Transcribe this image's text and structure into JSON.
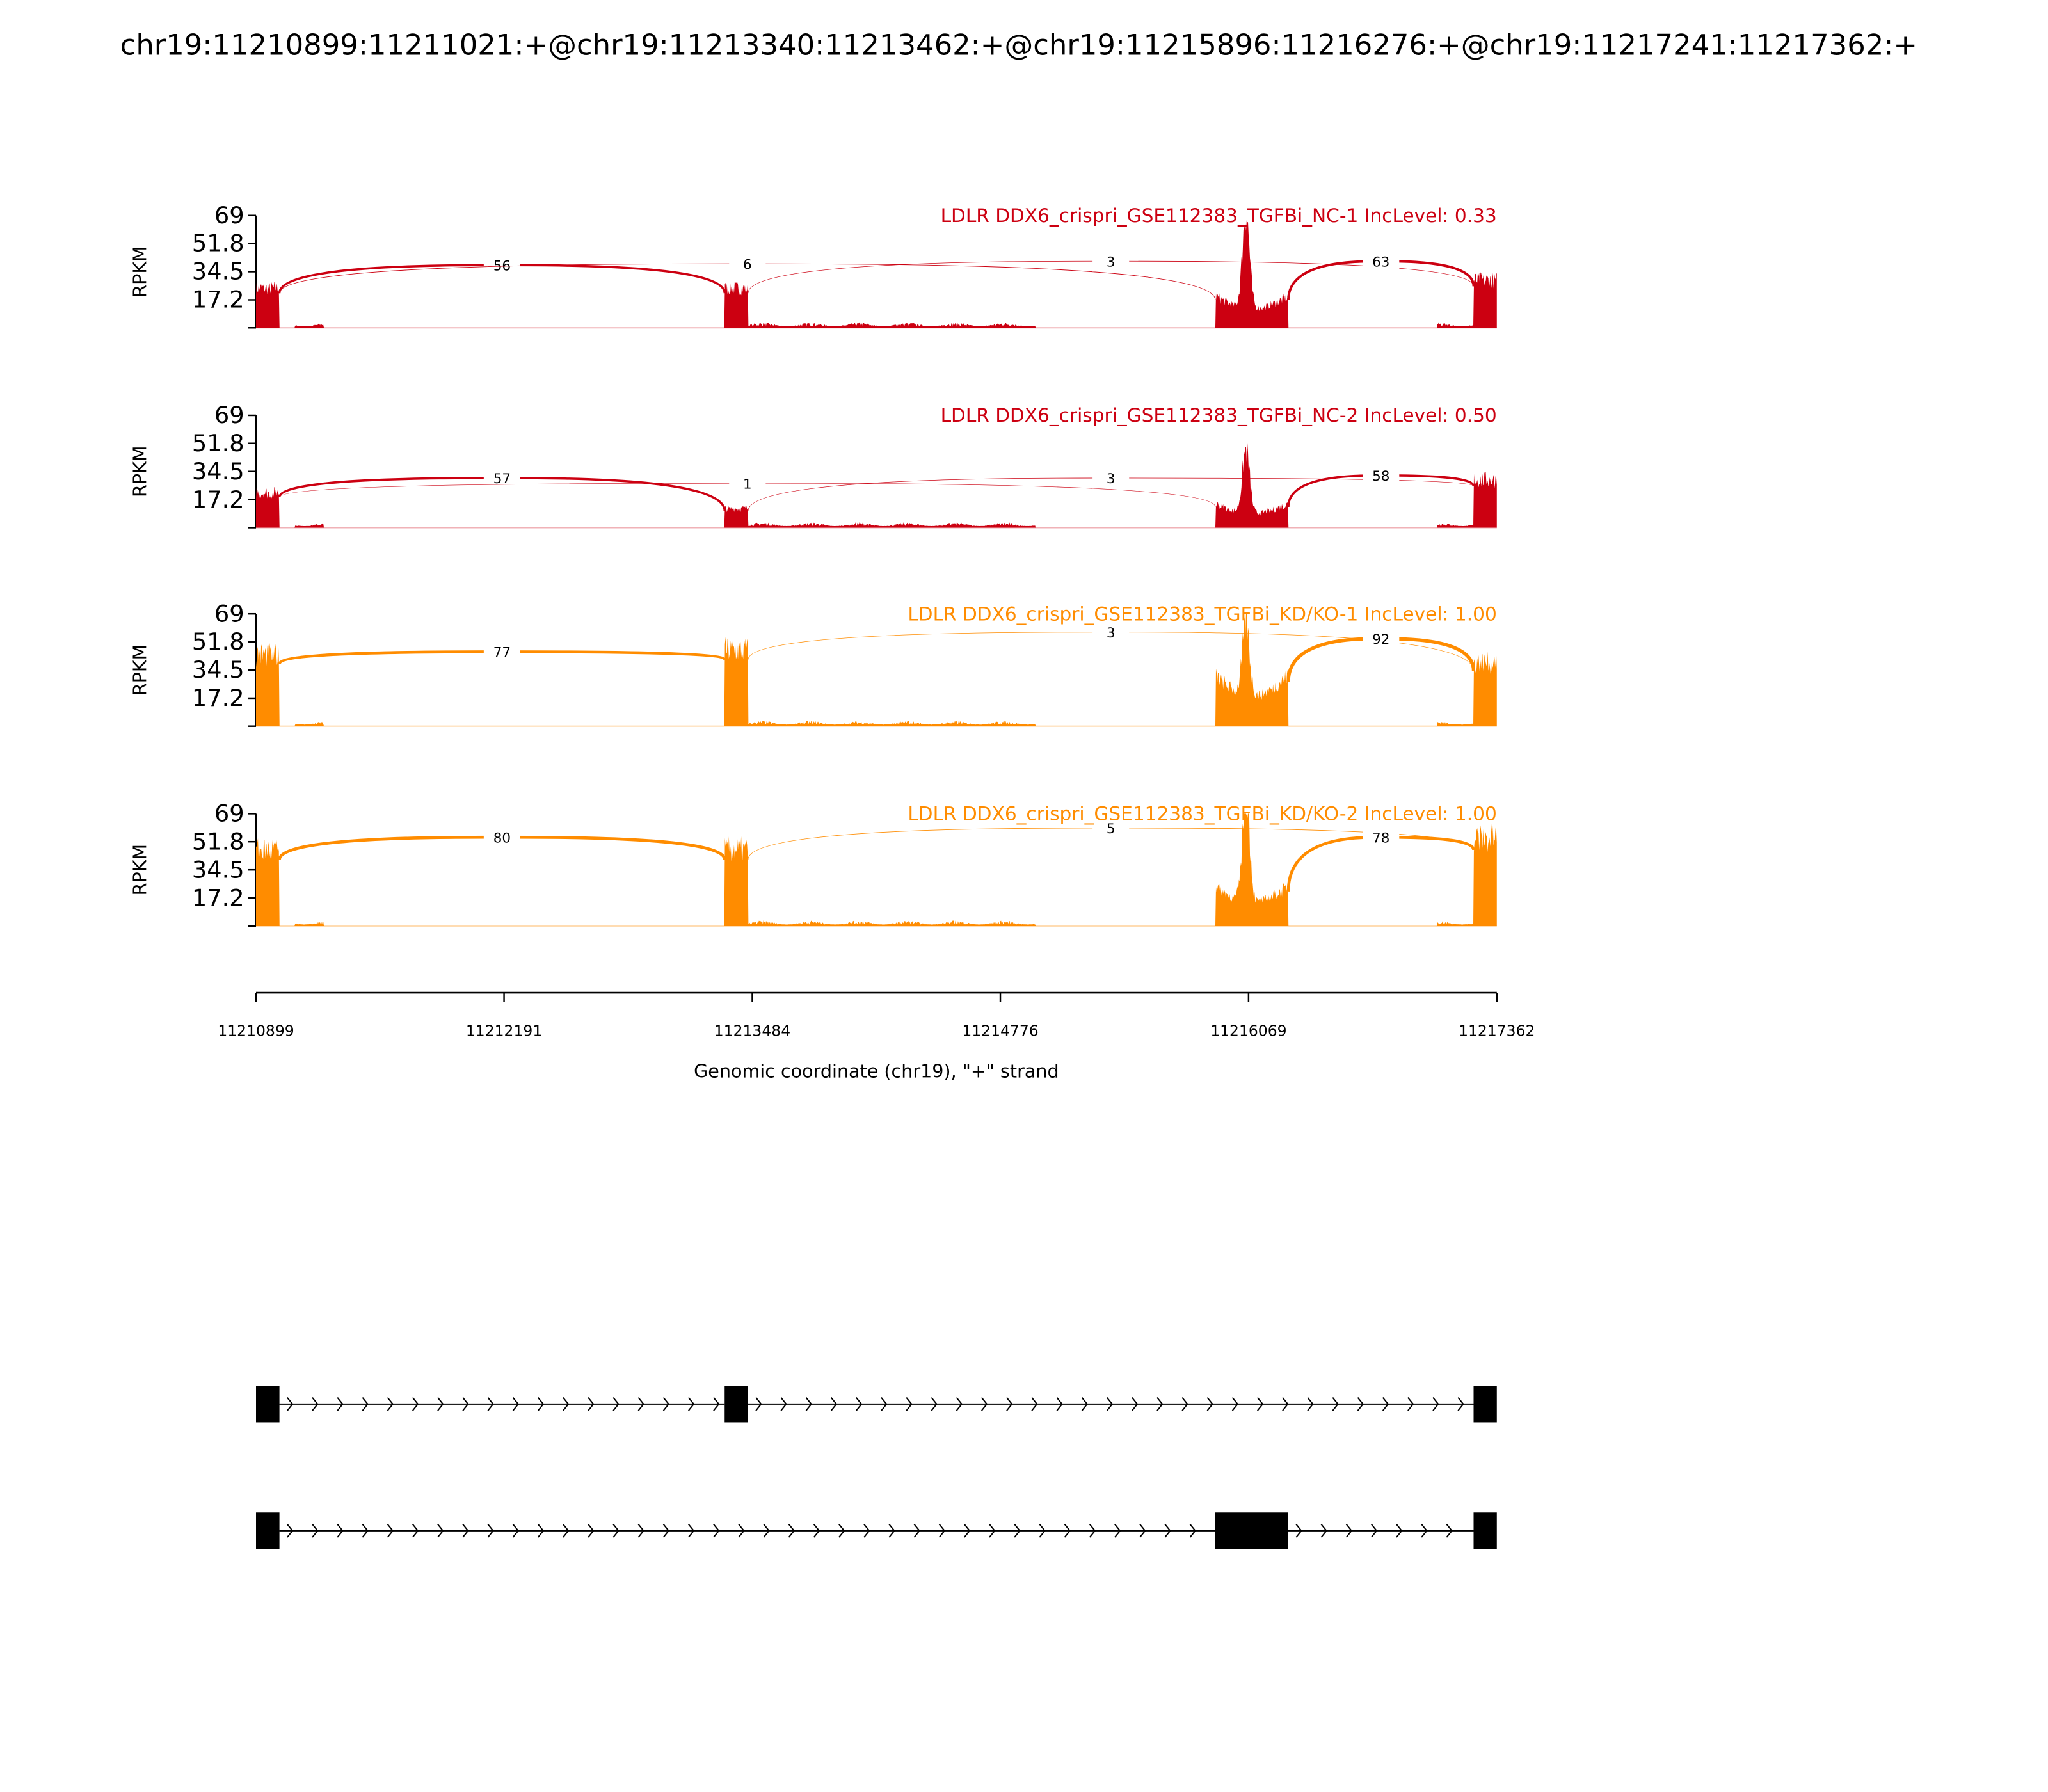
{
  "chart_data": {
    "type": "area",
    "title": "chr19:11210899:11211021:+@chr19:11213340:11213462:+@chr19:11215896:11216276:+@chr19:11217241:11217362:+",
    "xlabel": "Genomic coordinate (chr19), \"+\" strand",
    "ylabel": "RPKM",
    "xlim": [
      11210899,
      11217362
    ],
    "ylim": [
      0,
      69
    ],
    "yticks": [
      "69",
      "51.8",
      "34.5",
      "17.2"
    ],
    "ytick_values": [
      69,
      51.8,
      34.5,
      17.2
    ],
    "xticks": [
      "11210899",
      "11212191",
      "11213484",
      "11214776",
      "11216069",
      "11217362"
    ],
    "exons": [
      [
        11210899,
        11211021
      ],
      [
        11213340,
        11213462
      ],
      [
        11215896,
        11216276
      ],
      [
        11217241,
        11217362
      ]
    ],
    "panels": [
      {
        "label": "LDLR DDX6_crispri_GSE112383_TGFBi_NC-1 IncLevel: 0.33",
        "color": "#cc0011",
        "junctions": [
          {
            "start": 11211021,
            "end": 11213340,
            "count": "56"
          },
          {
            "start": 11211021,
            "end": 11215896,
            "count": "6"
          },
          {
            "start": 11213462,
            "end": 11217241,
            "count": "3"
          },
          {
            "start": 11216276,
            "end": 11217241,
            "count": "63"
          }
        ]
      },
      {
        "label": "LDLR DDX6_crispri_GSE112383_TGFBi_NC-2 IncLevel: 0.50",
        "color": "#cc0011",
        "junctions": [
          {
            "start": 11211021,
            "end": 11213340,
            "count": "57"
          },
          {
            "start": 11211021,
            "end": 11215896,
            "count": "1"
          },
          {
            "start": 11213462,
            "end": 11217241,
            "count": "3"
          },
          {
            "start": 11216276,
            "end": 11217241,
            "count": "58"
          }
        ]
      },
      {
        "label": "LDLR DDX6_crispri_GSE112383_TGFBi_KD/KO-1 IncLevel: 1.00",
        "color": "#ff8c00",
        "junctions": [
          {
            "start": 11211021,
            "end": 11213340,
            "count": "77"
          },
          {
            "start": 11213462,
            "end": 11217241,
            "count": "3"
          },
          {
            "start": 11216276,
            "end": 11217241,
            "count": "92"
          }
        ]
      },
      {
        "label": "LDLR DDX6_crispri_GSE112383_TGFBi_KD/KO-2 IncLevel: 1.00",
        "color": "#ff8c00",
        "junctions": [
          {
            "start": 11211021,
            "end": 11213340,
            "count": "80"
          },
          {
            "start": 11213462,
            "end": 11217241,
            "count": "5"
          },
          {
            "start": 11216276,
            "end": 11217241,
            "count": "78"
          }
        ]
      }
    ],
    "isoforms": [
      {
        "exons": [
          0,
          1,
          3
        ]
      },
      {
        "exons": [
          0,
          2,
          3
        ]
      }
    ]
  }
}
